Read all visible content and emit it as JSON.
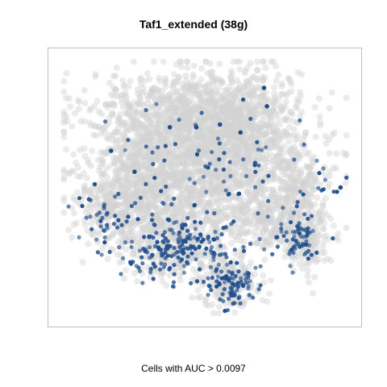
{
  "chart_data": {
    "type": "scatter",
    "title": "Taf1_extended (38g)",
    "xlabel": "Cells with AUC > 0.0097",
    "ylabel": "",
    "grid": false,
    "legend": "none",
    "axes_ticks": false,
    "colors": {
      "background_cells": "#d3d3d3",
      "high_auc_cells": "#1f4e8c",
      "panel_border": "#bfbfbf"
    },
    "series": [
      {
        "role": "all-cells",
        "color": "#d3d3d3",
        "clusters": [
          {
            "cx": 0.44,
            "cy": 0.78,
            "sx": 0.17,
            "sy": 0.08,
            "n": 900
          },
          {
            "cx": 0.63,
            "cy": 0.75,
            "sx": 0.1,
            "sy": 0.1,
            "n": 500
          },
          {
            "cx": 0.5,
            "cy": 0.6,
            "sx": 0.18,
            "sy": 0.07,
            "n": 700
          },
          {
            "cx": 0.3,
            "cy": 0.55,
            "sx": 0.1,
            "sy": 0.1,
            "n": 450
          },
          {
            "cx": 0.2,
            "cy": 0.42,
            "sx": 0.07,
            "sy": 0.07,
            "n": 250
          },
          {
            "cx": 0.5,
            "cy": 0.44,
            "sx": 0.14,
            "sy": 0.07,
            "n": 500
          },
          {
            "cx": 0.4,
            "cy": 0.27,
            "sx": 0.1,
            "sy": 0.06,
            "n": 350
          },
          {
            "cx": 0.59,
            "cy": 0.14,
            "sx": 0.05,
            "sy": 0.05,
            "n": 180
          },
          {
            "cx": 0.82,
            "cy": 0.5,
            "sx": 0.05,
            "sy": 0.07,
            "n": 200
          },
          {
            "cx": 0.85,
            "cy": 0.3,
            "sx": 0.04,
            "sy": 0.06,
            "n": 160
          },
          {
            "cx": 0.73,
            "cy": 0.36,
            "sx": 0.05,
            "sy": 0.05,
            "n": 180
          }
        ]
      },
      {
        "role": "cells-above-threshold",
        "color": "#1f4e8c",
        "clusters": [
          {
            "cx": 0.4,
            "cy": 0.27,
            "sx": 0.1,
            "sy": 0.05,
            "n": 170
          },
          {
            "cx": 0.59,
            "cy": 0.13,
            "sx": 0.04,
            "sy": 0.04,
            "n": 80
          },
          {
            "cx": 0.82,
            "cy": 0.3,
            "sx": 0.04,
            "sy": 0.05,
            "n": 60
          },
          {
            "cx": 0.15,
            "cy": 0.38,
            "sx": 0.04,
            "sy": 0.05,
            "n": 30
          },
          {
            "cx": 0.5,
            "cy": 0.45,
            "sx": 0.18,
            "sy": 0.12,
            "n": 70
          },
          {
            "cx": 0.55,
            "cy": 0.65,
            "sx": 0.2,
            "sy": 0.12,
            "n": 35
          },
          {
            "cx": 0.88,
            "cy": 0.5,
            "sx": 0.05,
            "sy": 0.06,
            "n": 15
          }
        ],
        "points": [
          {
            "x": 0.96,
            "y": 0.5
          },
          {
            "x": 0.7,
            "y": 0.88
          },
          {
            "x": 0.71,
            "y": 0.81
          },
          {
            "x": 0.47,
            "y": 0.73
          },
          {
            "x": 0.38,
            "y": 0.73
          },
          {
            "x": 0.62,
            "y": 0.71
          },
          {
            "x": 0.18,
            "y": 0.64
          },
          {
            "x": 0.26,
            "y": 0.56
          },
          {
            "x": 0.55,
            "y": 0.74
          }
        ]
      }
    ]
  }
}
